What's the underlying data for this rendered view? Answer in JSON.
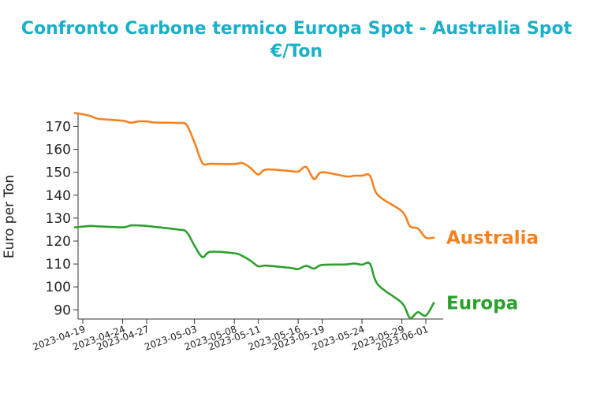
{
  "chart_data": {
    "type": "line",
    "title_line1": "Confronto Carbone termico Europa Spot - Australia Spot",
    "title_line2": "€/Ton",
    "xlabel": "",
    "ylabel": "Euro per Ton",
    "ylim": [
      86,
      176
    ],
    "yticks": [
      90,
      100,
      110,
      120,
      130,
      140,
      150,
      160,
      170
    ],
    "xticks": [
      "2023-04-19",
      "2023-04-24",
      "2023-04-27",
      "2023-05-03",
      "2023-05-08",
      "2023-05-11",
      "2023-05-16",
      "2023-05-19",
      "2023-05-24",
      "2023-05-29",
      "2023-06-01"
    ],
    "title_color": "#1ab0c8",
    "grid": false,
    "legend": "inline labels at right end of lines",
    "series": [
      {
        "name": "Australia",
        "color": "#f58220",
        "points": [
          [
            "2023-04-18",
            175.8
          ],
          [
            "2023-04-19",
            175.3
          ],
          [
            "2023-04-20",
            174.5
          ],
          [
            "2023-04-21",
            173.3
          ],
          [
            "2023-04-24",
            172.5
          ],
          [
            "2023-04-25",
            171.6
          ],
          [
            "2023-04-26",
            172.2
          ],
          [
            "2023-04-27",
            172.2
          ],
          [
            "2023-04-28",
            171.7
          ],
          [
            "2023-05-01",
            171.5
          ],
          [
            "2023-05-02",
            170.7
          ],
          [
            "2023-05-03",
            163.0
          ],
          [
            "2023-05-04",
            154.0
          ],
          [
            "2023-05-05",
            153.7
          ],
          [
            "2023-05-08",
            153.6
          ],
          [
            "2023-05-09",
            154.0
          ],
          [
            "2023-05-10",
            152.0
          ],
          [
            "2023-05-11",
            149.0
          ],
          [
            "2023-05-12",
            151.2
          ],
          [
            "2023-05-15",
            150.5
          ],
          [
            "2023-05-16",
            150.3
          ],
          [
            "2023-05-17",
            152.3
          ],
          [
            "2023-05-18",
            147.0
          ],
          [
            "2023-05-19",
            150.0
          ],
          [
            "2023-05-22",
            148.2
          ],
          [
            "2023-05-23",
            148.5
          ],
          [
            "2023-05-24",
            148.5
          ],
          [
            "2023-05-25",
            148.5
          ],
          [
            "2023-05-26",
            140.0
          ],
          [
            "2023-05-29",
            133.0
          ],
          [
            "2023-05-30",
            126.5
          ],
          [
            "2023-05-31",
            125.5
          ],
          [
            "2023-06-01",
            121.5
          ],
          [
            "2023-06-02",
            121.5
          ]
        ]
      },
      {
        "name": "Europa",
        "color": "#2ca02c",
        "points": [
          [
            "2023-04-18",
            126.0
          ],
          [
            "2023-04-19",
            126.3
          ],
          [
            "2023-04-20",
            126.6
          ],
          [
            "2023-04-21",
            126.4
          ],
          [
            "2023-04-24",
            126.0
          ],
          [
            "2023-04-25",
            126.8
          ],
          [
            "2023-04-26",
            126.8
          ],
          [
            "2023-04-27",
            126.6
          ],
          [
            "2023-04-28",
            126.2
          ],
          [
            "2023-05-01",
            125.0
          ],
          [
            "2023-05-02",
            124.0
          ],
          [
            "2023-05-03",
            118.0
          ],
          [
            "2023-05-04",
            113.0
          ],
          [
            "2023-05-05",
            115.3
          ],
          [
            "2023-05-08",
            114.7
          ],
          [
            "2023-05-09",
            113.5
          ],
          [
            "2023-05-10",
            111.5
          ],
          [
            "2023-05-11",
            109.0
          ],
          [
            "2023-05-12",
            109.3
          ],
          [
            "2023-05-15",
            108.3
          ],
          [
            "2023-05-16",
            107.8
          ],
          [
            "2023-05-17",
            109.2
          ],
          [
            "2023-05-18",
            108.0
          ],
          [
            "2023-05-19",
            109.6
          ],
          [
            "2023-05-22",
            109.8
          ],
          [
            "2023-05-23",
            110.2
          ],
          [
            "2023-05-24",
            109.7
          ],
          [
            "2023-05-25",
            110.0
          ],
          [
            "2023-05-26",
            101.0
          ],
          [
            "2023-05-29",
            93.0
          ],
          [
            "2023-05-30",
            86.5
          ],
          [
            "2023-05-31",
            89.0
          ],
          [
            "2023-06-01",
            87.5
          ],
          [
            "2023-06-02",
            93.0
          ]
        ]
      }
    ]
  }
}
